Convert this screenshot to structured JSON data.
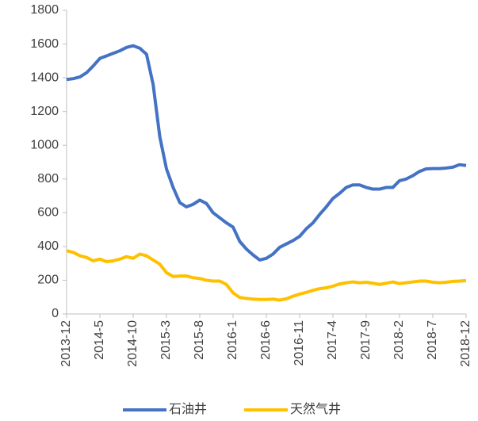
{
  "chart_data": {
    "type": "line",
    "categories": [
      "2013-12",
      null,
      null,
      null,
      null,
      "2014-5",
      null,
      null,
      null,
      null,
      "2014-10",
      null,
      null,
      null,
      null,
      "2015-3",
      null,
      null,
      null,
      null,
      "2015-8",
      null,
      null,
      null,
      null,
      "2016-1",
      null,
      null,
      null,
      null,
      "2016-6",
      null,
      null,
      null,
      null,
      "2016-11",
      null,
      null,
      null,
      null,
      "2017-4",
      null,
      null,
      null,
      null,
      "2017-9",
      null,
      null,
      null,
      null,
      "2018-2",
      null,
      null,
      null,
      null,
      "2018-7",
      null,
      null,
      null,
      null,
      "2018-12"
    ],
    "series": [
      {
        "name": "石油井",
        "color": "#4472c4",
        "values": [
          1390,
          1395,
          1405,
          1430,
          1470,
          1515,
          1530,
          1545,
          1560,
          1580,
          1590,
          1575,
          1540,
          1360,
          1050,
          860,
          750,
          660,
          635,
          650,
          675,
          655,
          600,
          570,
          540,
          515,
          430,
          385,
          350,
          320,
          330,
          355,
          395,
          415,
          435,
          460,
          505,
          540,
          590,
          635,
          685,
          715,
          750,
          765,
          765,
          750,
          740,
          740,
          750,
          750,
          790,
          800,
          820,
          845,
          860,
          862,
          862,
          865,
          870,
          885,
          880
        ]
      },
      {
        "name": "天然气井",
        "color": "#ffc000",
        "values": [
          375,
          365,
          345,
          335,
          315,
          325,
          310,
          315,
          325,
          340,
          330,
          355,
          345,
          320,
          295,
          245,
          222,
          225,
          225,
          215,
          210,
          200,
          195,
          195,
          175,
          125,
          98,
          92,
          88,
          86,
          86,
          88,
          82,
          90,
          105,
          118,
          128,
          140,
          150,
          155,
          165,
          178,
          185,
          190,
          185,
          188,
          182,
          175,
          182,
          190,
          180,
          185,
          190,
          195,
          195,
          188,
          185,
          188,
          193,
          195,
          198
        ]
      }
    ],
    "ylim": [
      0,
      1800
    ],
    "yticks": [
      0,
      200,
      400,
      600,
      800,
      1000,
      1200,
      1400,
      1600,
      1800
    ],
    "legend": "bottom"
  }
}
